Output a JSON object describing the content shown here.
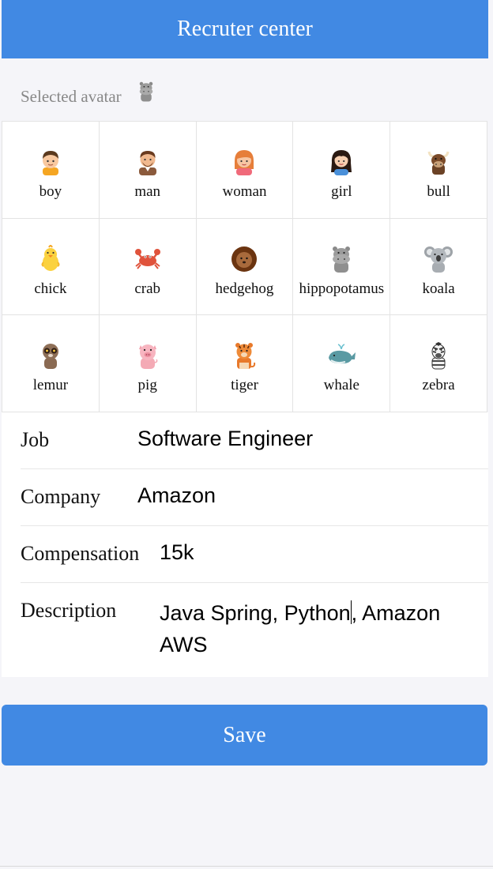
{
  "header": {
    "title": "Recruter center"
  },
  "selected": {
    "label": "Selected avatar",
    "avatar_icon": "hippopotamus-icon"
  },
  "avatars": [
    {
      "name": "boy"
    },
    {
      "name": "man"
    },
    {
      "name": "woman"
    },
    {
      "name": "girl"
    },
    {
      "name": "bull"
    },
    {
      "name": "chick"
    },
    {
      "name": "crab"
    },
    {
      "name": "hedgehog"
    },
    {
      "name": "hippopotamus"
    },
    {
      "name": "koala"
    },
    {
      "name": "lemur"
    },
    {
      "name": "pig"
    },
    {
      "name": "tiger"
    },
    {
      "name": "whale"
    },
    {
      "name": "zebra"
    }
  ],
  "form": {
    "job": {
      "label": "Job",
      "value": "Software Engineer"
    },
    "company": {
      "label": "Company",
      "value": "Amazon"
    },
    "compensation": {
      "label": "Compensation",
      "value": "15k"
    },
    "description": {
      "label": "Description",
      "value_before_caret": "Java Spring, Python",
      "value_after_caret": ", Amazon AWS"
    }
  },
  "actions": {
    "save_label": "Save"
  },
  "colors": {
    "primary": "#4189e3",
    "background": "#f5f5f9"
  }
}
